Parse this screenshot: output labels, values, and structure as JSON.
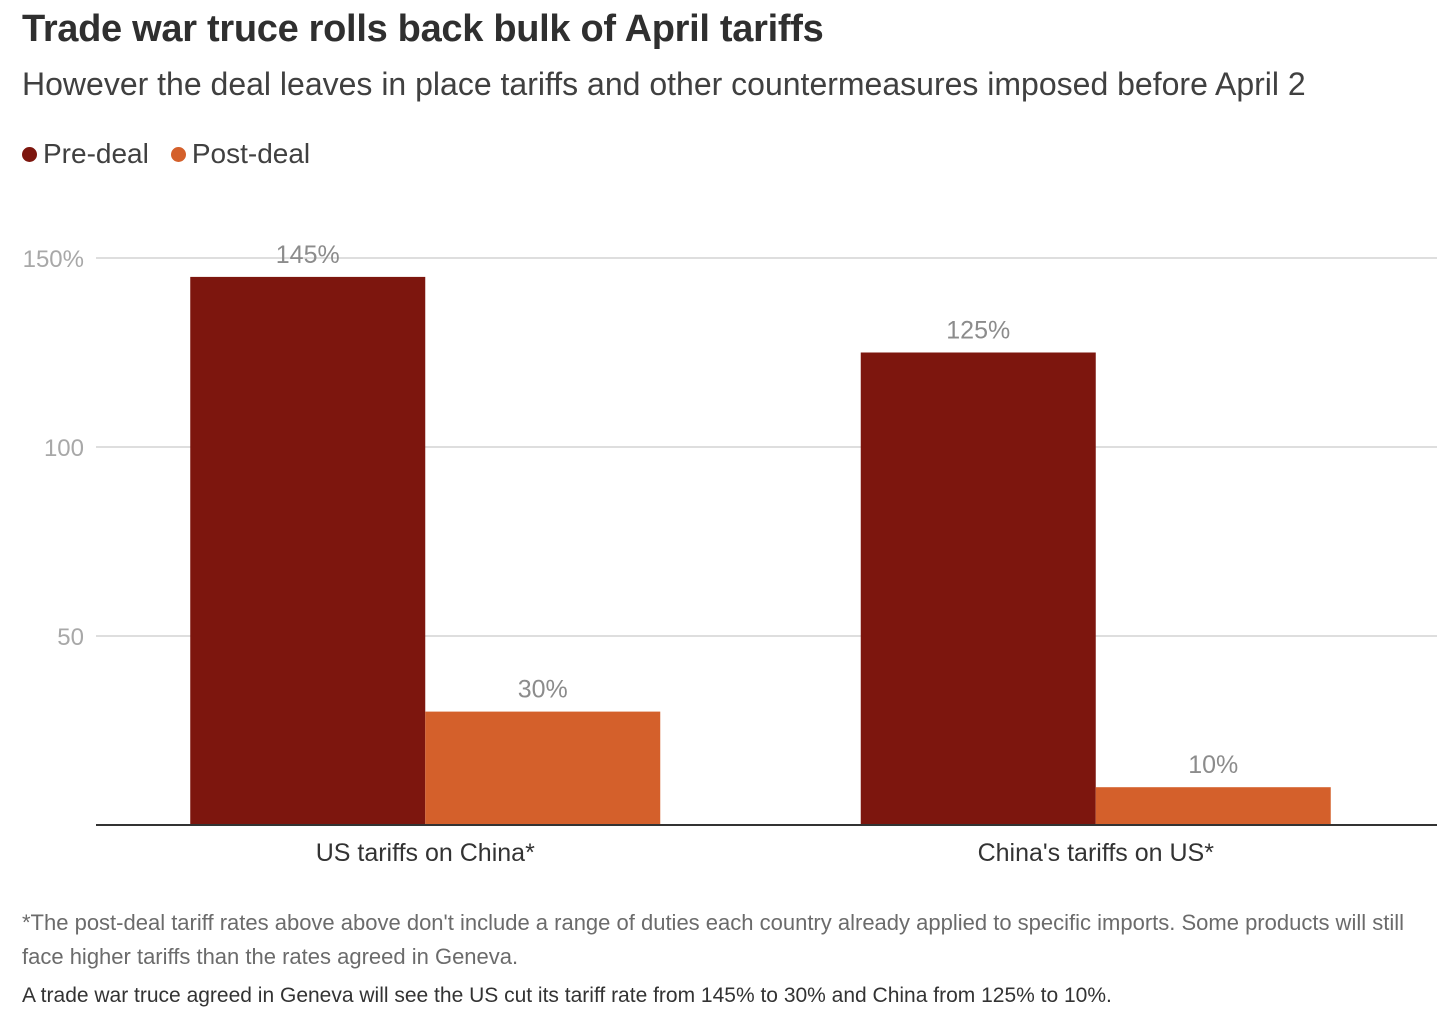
{
  "title": "Trade war truce rolls back bulk of April tariffs",
  "subtitle": "However the deal leaves in place tariffs and other countermeasures imposed before April 2",
  "footnote": "*The post-deal tariff rates above above don't include a range of duties each country already applied to specific imports. Some products will still face higher tariffs than the rates agreed in Geneva.",
  "caption": "A trade war truce agreed in Geneva will see the US cut its tariff rate from 145% to 30% and China from 125% to 10%.",
  "colors": {
    "pre_deal": "#7d160e",
    "post_deal": "#d4602b",
    "grid": "#d4d4d4",
    "axis": "#333333"
  },
  "chart_data": {
    "type": "bar",
    "categories": [
      "US tariffs on China*",
      "China's tariffs on US*"
    ],
    "series": [
      {
        "name": "Pre-deal",
        "values": [
          145,
          125
        ],
        "labels": [
          "145%",
          "125%"
        ]
      },
      {
        "name": "Post-deal",
        "values": [
          30,
          10
        ],
        "labels": [
          "30%",
          "10%"
        ]
      }
    ],
    "ylim": [
      0,
      150
    ],
    "yticks": [
      {
        "value": 50,
        "label": "50"
      },
      {
        "value": 100,
        "label": "100"
      },
      {
        "value": 150,
        "label": "150%"
      }
    ],
    "grid": true,
    "legend": "top-left"
  }
}
